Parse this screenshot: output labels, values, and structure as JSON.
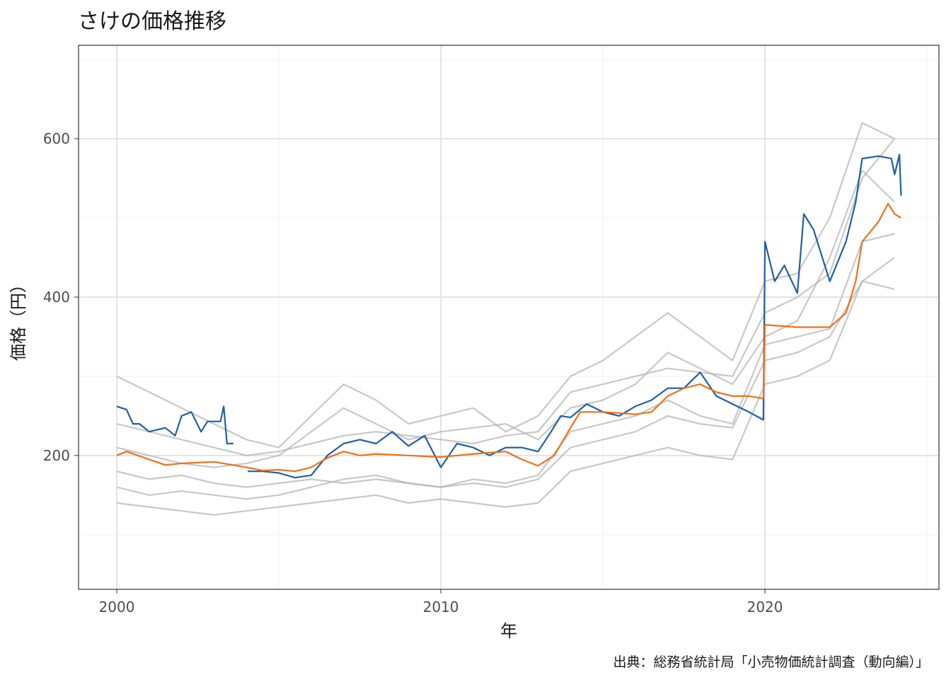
{
  "chart_data": {
    "type": "line",
    "title": "さけの価格推移",
    "x_label": "年",
    "y_label": "価格（円）",
    "caption": "出典：総務省統計局「小売物価統計調査（動向編）」",
    "xlim": [
      1998.82,
      2025.37
    ],
    "xticks": [
      2000,
      2010,
      2020
    ],
    "ylim": [
      31,
      718
    ],
    "yticks": [
      200,
      400,
      600
    ],
    "grid": true,
    "series": [
      {
        "color": "#b0b0b0",
        "x": [
          2000,
          2001,
          2002,
          2003,
          2004,
          2005,
          2006,
          2007,
          2008,
          2009,
          2010,
          2011,
          2012,
          2013,
          2014,
          2015,
          2016,
          2017,
          2018,
          2019,
          2020,
          2021,
          2022,
          2023,
          2024
        ],
        "values": [
          180,
          170,
          175,
          165,
          160,
          165,
          170,
          165,
          170,
          165,
          160,
          165,
          160,
          170,
          210,
          220,
          230,
          250,
          240,
          235,
          320,
          330,
          350,
          420,
          450
        ]
      },
      {
        "color": "#b0b0b0",
        "x": [
          2000,
          2001,
          2002,
          2003,
          2004,
          2005,
          2006,
          2007,
          2008,
          2009,
          2010,
          2011,
          2012,
          2013,
          2014,
          2015,
          2016,
          2017,
          2018,
          2019,
          2020,
          2021,
          2022,
          2023,
          2024
        ],
        "values": [
          240,
          230,
          220,
          210,
          200,
          205,
          215,
          225,
          230,
          225,
          220,
          215,
          225,
          230,
          280,
          290,
          300,
          310,
          305,
          300,
          380,
          400,
          430,
          550,
          600
        ]
      },
      {
        "color": "#b0b0b0",
        "x": [
          2000,
          2001,
          2002,
          2003,
          2004,
          2005,
          2006,
          2007,
          2008,
          2009,
          2010,
          2011,
          2012,
          2013,
          2014,
          2015,
          2016,
          2017,
          2018,
          2019,
          2020,
          2021,
          2022,
          2023,
          2024
        ],
        "values": [
          140,
          135,
          130,
          125,
          130,
          135,
          140,
          145,
          150,
          140,
          145,
          140,
          135,
          140,
          180,
          190,
          200,
          210,
          200,
          195,
          290,
          300,
          320,
          420,
          410
        ]
      },
      {
        "color": "#b0b0b0",
        "x": [
          2000,
          2001,
          2002,
          2003,
          2004,
          2005,
          2006,
          2007,
          2008,
          2009,
          2010,
          2011,
          2012,
          2013,
          2014,
          2015,
          2016,
          2017,
          2018,
          2019,
          2020,
          2021,
          2022,
          2023,
          2024
        ],
        "values": [
          210,
          200,
          190,
          185,
          190,
          200,
          230,
          260,
          240,
          220,
          230,
          235,
          240,
          220,
          260,
          270,
          290,
          330,
          310,
          290,
          350,
          370,
          450,
          560,
          520
        ]
      },
      {
        "color": "#b0b0b0",
        "x": [
          2000,
          2001,
          2002,
          2003,
          2004,
          2005,
          2006,
          2007,
          2008,
          2009,
          2010,
          2011,
          2012,
          2013,
          2014,
          2015,
          2016,
          2017,
          2018,
          2019,
          2020,
          2021,
          2022,
          2023,
          2024
        ],
        "values": [
          160,
          150,
          155,
          150,
          145,
          150,
          160,
          170,
          175,
          165,
          160,
          170,
          165,
          175,
          230,
          240,
          250,
          270,
          250,
          240,
          340,
          350,
          360,
          470,
          480
        ]
      },
      {
        "color": "#b0b0b0",
        "x": [
          2000,
          2001,
          2002,
          2003,
          2004,
          2005,
          2006,
          2007,
          2008,
          2009,
          2010,
          2011,
          2012,
          2013,
          2014,
          2015,
          2016,
          2017,
          2018,
          2019,
          2020,
          2021,
          2022,
          2023,
          2024
        ],
        "values": [
          300,
          280,
          260,
          240,
          220,
          210,
          250,
          290,
          270,
          240,
          250,
          260,
          230,
          250,
          300,
          320,
          350,
          380,
          350,
          320,
          420,
          430,
          500,
          620,
          600
        ]
      },
      {
        "color": "#1f5fa6",
        "x": [
          2000,
          2000.3,
          2000.5,
          2000.7,
          2001,
          2001.5,
          2001.8,
          2002,
          2002.3,
          2002.6,
          2002.8,
          2003.2,
          2003.3,
          2003.4,
          2003.6,
          2003.8,
          2004.04,
          2004.5,
          2005,
          2005.5,
          2006,
          2006.5,
          2007,
          2007.5,
          2008,
          2008.5,
          2009,
          2009.5,
          2010,
          2010.5,
          2011,
          2011.5,
          2012,
          2012.5,
          2013,
          2013.4,
          2013.7,
          2014,
          2014.5,
          2015,
          2015.5,
          2016,
          2016.5,
          2017,
          2017.5,
          2018,
          2018.5,
          2019,
          2019.5,
          2019.95,
          2020,
          2020.3,
          2020.6,
          2021,
          2021.2,
          2021.5,
          2022,
          2022.5,
          2022.8,
          2023,
          2023.5,
          2023.9,
          2024,
          2024.15,
          2024.2
        ],
        "values": [
          262,
          258,
          240,
          240,
          230,
          235,
          225,
          250,
          255,
          230,
          243,
          243,
          262,
          215,
          215,
          null,
          180,
          180,
          178,
          172,
          175,
          200,
          215,
          220,
          215,
          230,
          212,
          225,
          185,
          215,
          210,
          200,
          210,
          210,
          205,
          230,
          250,
          248,
          265,
          255,
          250,
          262,
          270,
          285,
          285,
          305,
          275,
          265,
          255,
          245,
          470,
          420,
          440,
          405,
          505,
          485,
          420,
          470,
          520,
          575,
          578,
          575,
          555,
          580,
          528
        ]
      },
      {
        "color": "#f07019",
        "x": [
          2000,
          2000.3,
          2001,
          2001.5,
          2002,
          2003,
          2004,
          2004.5,
          2005,
          2005.5,
          2006,
          2006.5,
          2007,
          2007.5,
          2008,
          2009,
          2010,
          2011,
          2012,
          2012.5,
          2013,
          2013.5,
          2014,
          2014.3,
          2015,
          2016,
          2016.5,
          2017,
          2017.5,
          2018,
          2018.5,
          2019,
          2019.5,
          2019.95,
          2020,
          2021,
          2022,
          2022.5,
          2022.8,
          2023,
          2023.5,
          2023.8,
          2024,
          2024.2
        ],
        "values": [
          200,
          205,
          195,
          188,
          190,
          192,
          185,
          181,
          182,
          180,
          185,
          197,
          205,
          200,
          202,
          200,
          198,
          202,
          205,
          195,
          187,
          200,
          235,
          255,
          255,
          252,
          255,
          275,
          285,
          290,
          280,
          275,
          275,
          272,
          365,
          362,
          362,
          380,
          420,
          470,
          495,
          518,
          505,
          500
        ]
      }
    ]
  }
}
